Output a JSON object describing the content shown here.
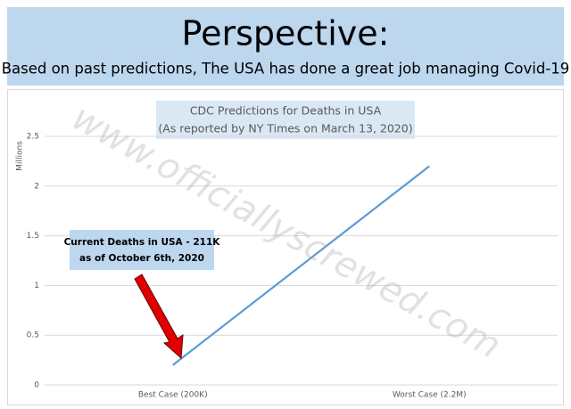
{
  "header": {
    "title": "Perspective:",
    "subtitle": "Based on past predictions, The USA has done a great job managing Covid-19"
  },
  "chart_data": {
    "type": "line",
    "title": "CDC Predictions for Deaths in USA",
    "subtitle": "(As reported by NY Times on March 13, 2020)",
    "y_label": "Millions",
    "categories": [
      "Best Case (200K)",
      "Worst Case (2.2M)"
    ],
    "values": [
      0.2,
      2.2
    ],
    "color": "#5b9bd5",
    "ylim": [
      0,
      2.5
    ],
    "yticks": [
      0,
      0.5,
      1,
      1.5,
      2,
      2.5
    ],
    "grid": true,
    "annotations": [
      "Current Deaths in USA - 211K",
      "as of October 6th, 2020"
    ],
    "watermark": "www.officiallyscrewed.com"
  }
}
